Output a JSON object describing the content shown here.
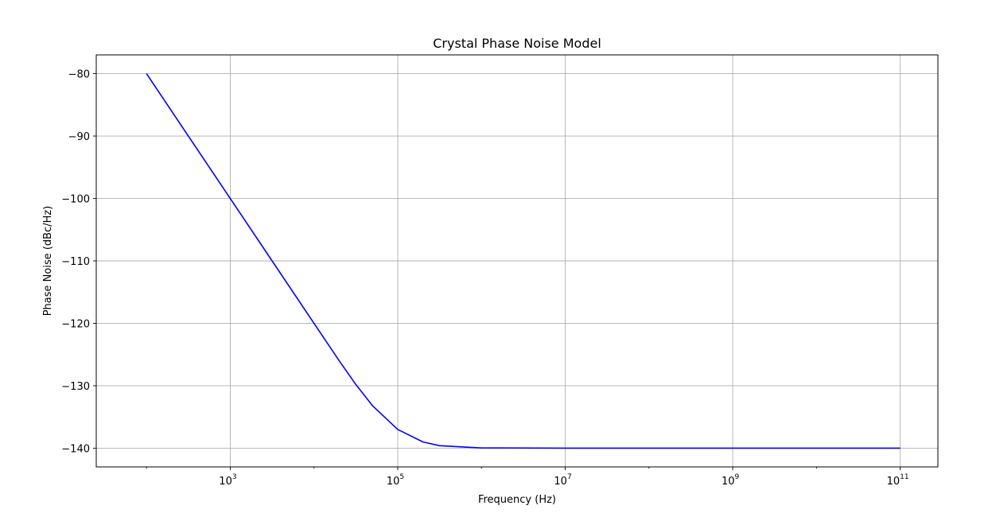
{
  "chart_data": {
    "type": "line",
    "title": "Crystal Phase Noise Model",
    "xlabel": "Frequency (Hz)",
    "ylabel": "Phase Noise (dBc/Hz)",
    "xscale": "log",
    "xlim": [
      1e-308,
      0
    ],
    "xlim_exp": [
      1.4,
      11.45
    ],
    "ylim": [
      -143,
      -77
    ],
    "grid": true,
    "x_ticks": [
      {
        "base": "10",
        "exp": "3",
        "value": 1000
      },
      {
        "base": "10",
        "exp": "5",
        "value": 100000
      },
      {
        "base": "10",
        "exp": "7",
        "value": 10000000
      },
      {
        "base": "10",
        "exp": "9",
        "value": 1000000000
      },
      {
        "base": "10",
        "exp": "11",
        "value": 100000000000
      }
    ],
    "y_ticks": [
      {
        "label": "−80",
        "value": -80
      },
      {
        "label": "−90",
        "value": -90
      },
      {
        "label": "−100",
        "value": -100
      },
      {
        "label": "−110",
        "value": -110
      },
      {
        "label": "−120",
        "value": -120
      },
      {
        "label": "−130",
        "value": -130
      },
      {
        "label": "−140",
        "value": -140
      }
    ],
    "series": [
      {
        "color": "#0000ff",
        "x": [
          100,
          316,
          1000,
          3162,
          10000,
          20000,
          31623,
          50000,
          100000,
          200000,
          316228,
          1000000,
          10000000,
          100000000,
          1000000000,
          10000000000,
          100000000000
        ],
        "y": [
          -80,
          -90,
          -100,
          -110,
          -120,
          -126,
          -129.8,
          -133.2,
          -137,
          -139.0,
          -139.6,
          -139.96,
          -140,
          -140,
          -140,
          -140,
          -140
        ]
      }
    ]
  }
}
